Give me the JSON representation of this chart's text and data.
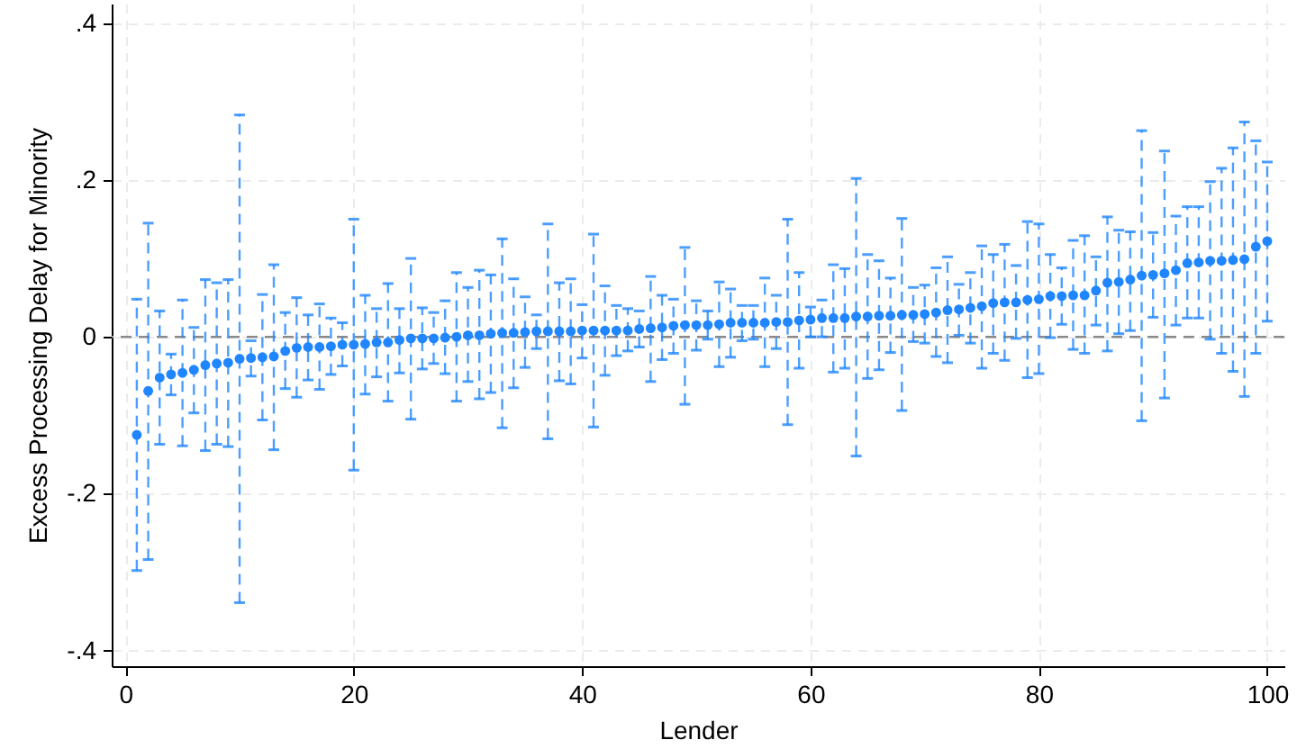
{
  "chart_data": {
    "type": "scatter",
    "xlabel": "Lender",
    "ylabel": "Excess Processing Delay for Minority",
    "x": [
      1,
      2,
      3,
      4,
      5,
      6,
      7,
      8,
      9,
      10,
      11,
      12,
      13,
      14,
      15,
      16,
      17,
      18,
      19,
      20,
      21,
      22,
      23,
      24,
      25,
      26,
      27,
      28,
      29,
      30,
      31,
      32,
      33,
      34,
      35,
      36,
      37,
      38,
      39,
      40,
      41,
      42,
      43,
      44,
      45,
      46,
      47,
      48,
      49,
      50,
      51,
      52,
      53,
      54,
      55,
      56,
      57,
      58,
      59,
      60,
      61,
      62,
      63,
      64,
      65,
      66,
      67,
      68,
      69,
      70,
      71,
      72,
      73,
      74,
      75,
      76,
      77,
      78,
      79,
      80,
      81,
      82,
      83,
      84,
      85,
      86,
      87,
      88,
      89,
      90,
      91,
      92,
      93,
      94,
      95,
      96,
      97,
      98,
      99,
      100
    ],
    "series": [
      {
        "color": "#1f86ff",
        "values": [
          -0.125,
          -0.069,
          -0.052,
          -0.048,
          -0.046,
          -0.042,
          -0.036,
          -0.034,
          -0.033,
          -0.028,
          -0.027,
          -0.026,
          -0.025,
          -0.018,
          -0.014,
          -0.013,
          -0.013,
          -0.012,
          -0.01,
          -0.01,
          -0.009,
          -0.007,
          -0.007,
          -0.004,
          -0.002,
          -0.002,
          -0.002,
          -0.001,
          0.0,
          0.002,
          0.002,
          0.004,
          0.005,
          0.005,
          0.006,
          0.007,
          0.007,
          0.007,
          0.007,
          0.008,
          0.008,
          0.008,
          0.008,
          0.008,
          0.01,
          0.011,
          0.012,
          0.014,
          0.015,
          0.015,
          0.015,
          0.016,
          0.018,
          0.018,
          0.018,
          0.018,
          0.019,
          0.019,
          0.021,
          0.022,
          0.024,
          0.024,
          0.024,
          0.026,
          0.026,
          0.027,
          0.027,
          0.028,
          0.028,
          0.029,
          0.031,
          0.034,
          0.035,
          0.037,
          0.039,
          0.043,
          0.044,
          0.044,
          0.047,
          0.048,
          0.052,
          0.052,
          0.053,
          0.053,
          0.059,
          0.069,
          0.07,
          0.073,
          0.078,
          0.079,
          0.081,
          0.085,
          0.094,
          0.095,
          0.097,
          0.097,
          0.098,
          0.099,
          0.115,
          0.122
        ],
        "errors": [
          [
            -0.298,
            0.048
          ],
          [
            -0.284,
            0.145
          ],
          [
            -0.137,
            0.033
          ],
          [
            -0.074,
            -0.022
          ],
          [
            -0.139,
            0.047
          ],
          [
            -0.097,
            0.012
          ],
          [
            -0.145,
            0.073
          ],
          [
            -0.137,
            0.069
          ],
          [
            -0.14,
            0.073
          ],
          [
            -0.339,
            0.283
          ],
          [
            -0.05,
            -0.005
          ],
          [
            -0.106,
            0.054
          ],
          [
            -0.144,
            0.092
          ],
          [
            -0.066,
            0.031
          ],
          [
            -0.077,
            0.05
          ],
          [
            -0.055,
            0.028
          ],
          [
            -0.067,
            0.042
          ],
          [
            -0.048,
            0.024
          ],
          [
            -0.037,
            0.018
          ],
          [
            -0.17,
            0.15
          ],
          [
            -0.073,
            0.053
          ],
          [
            -0.051,
            0.036
          ],
          [
            -0.082,
            0.068
          ],
          [
            -0.046,
            0.036
          ],
          [
            -0.105,
            0.1
          ],
          [
            -0.041,
            0.037
          ],
          [
            -0.034,
            0.031
          ],
          [
            -0.047,
            0.046
          ],
          [
            -0.082,
            0.082
          ],
          [
            -0.057,
            0.063
          ],
          [
            -0.079,
            0.085
          ],
          [
            -0.071,
            0.079
          ],
          [
            -0.116,
            0.125
          ],
          [
            -0.065,
            0.074
          ],
          [
            -0.039,
            0.051
          ],
          [
            -0.015,
            0.028
          ],
          [
            -0.13,
            0.144
          ],
          [
            -0.056,
            0.069
          ],
          [
            -0.06,
            0.074
          ],
          [
            -0.027,
            0.041
          ],
          [
            -0.115,
            0.131
          ],
          [
            -0.049,
            0.065
          ],
          [
            -0.024,
            0.04
          ],
          [
            -0.018,
            0.036
          ],
          [
            -0.013,
            0.033
          ],
          [
            -0.057,
            0.077
          ],
          [
            -0.029,
            0.053
          ],
          [
            -0.021,
            0.048
          ],
          [
            -0.086,
            0.114
          ],
          [
            -0.017,
            0.046
          ],
          [
            -0.003,
            0.033
          ],
          [
            -0.038,
            0.07
          ],
          [
            -0.026,
            0.061
          ],
          [
            -0.005,
            0.04
          ],
          [
            -0.003,
            0.04
          ],
          [
            -0.038,
            0.075
          ],
          [
            -0.015,
            0.053
          ],
          [
            -0.112,
            0.15
          ],
          [
            -0.04,
            0.082
          ],
          [
            0.0,
            0.038
          ],
          [
            0.0,
            0.047
          ],
          [
            -0.045,
            0.092
          ],
          [
            -0.04,
            0.087
          ],
          [
            -0.152,
            0.202
          ],
          [
            -0.053,
            0.105
          ],
          [
            -0.042,
            0.097
          ],
          [
            -0.02,
            0.075
          ],
          [
            -0.094,
            0.151
          ],
          [
            -0.006,
            0.063
          ],
          [
            -0.008,
            0.066
          ],
          [
            -0.025,
            0.088
          ],
          [
            -0.033,
            0.102
          ],
          [
            0.002,
            0.067
          ],
          [
            -0.008,
            0.082
          ],
          [
            -0.04,
            0.116
          ],
          [
            -0.021,
            0.105
          ],
          [
            -0.03,
            0.118
          ],
          [
            -0.002,
            0.091
          ],
          [
            -0.052,
            0.147
          ],
          [
            -0.047,
            0.144
          ],
          [
            -0.001,
            0.105
          ],
          [
            0.016,
            0.088
          ],
          [
            -0.016,
            0.123
          ],
          [
            -0.021,
            0.129
          ],
          [
            0.015,
            0.102
          ],
          [
            -0.018,
            0.153
          ],
          [
            0.004,
            0.136
          ],
          [
            0.008,
            0.134
          ],
          [
            -0.107,
            0.263
          ],
          [
            0.025,
            0.133
          ],
          [
            -0.078,
            0.237
          ],
          [
            0.015,
            0.154
          ],
          [
            0.024,
            0.166
          ],
          [
            0.024,
            0.166
          ],
          [
            -0.003,
            0.198
          ],
          [
            -0.021,
            0.215
          ],
          [
            -0.044,
            0.241
          ],
          [
            -0.076,
            0.274
          ],
          [
            -0.021,
            0.25
          ],
          [
            0.02,
            0.223
          ]
        ]
      }
    ],
    "xlim": [
      -1.2,
      101.5
    ],
    "xticks": [
      0,
      20,
      40,
      60,
      80,
      100
    ],
    "ylim": [
      -0.42,
      0.425
    ],
    "yticks": [
      {
        "value": -0.4,
        "label": "-.4"
      },
      {
        "value": -0.2,
        "label": "-.2"
      },
      0,
      {
        "value": 0.2,
        "label": ".2"
      },
      {
        "value": 0.4,
        "label": ".4"
      }
    ],
    "ref_lines": [
      {
        "axis": "y",
        "value": 0,
        "color": "#8a8a8a",
        "line_style": "dashed"
      }
    ],
    "grid": true,
    "marker": "circle"
  }
}
